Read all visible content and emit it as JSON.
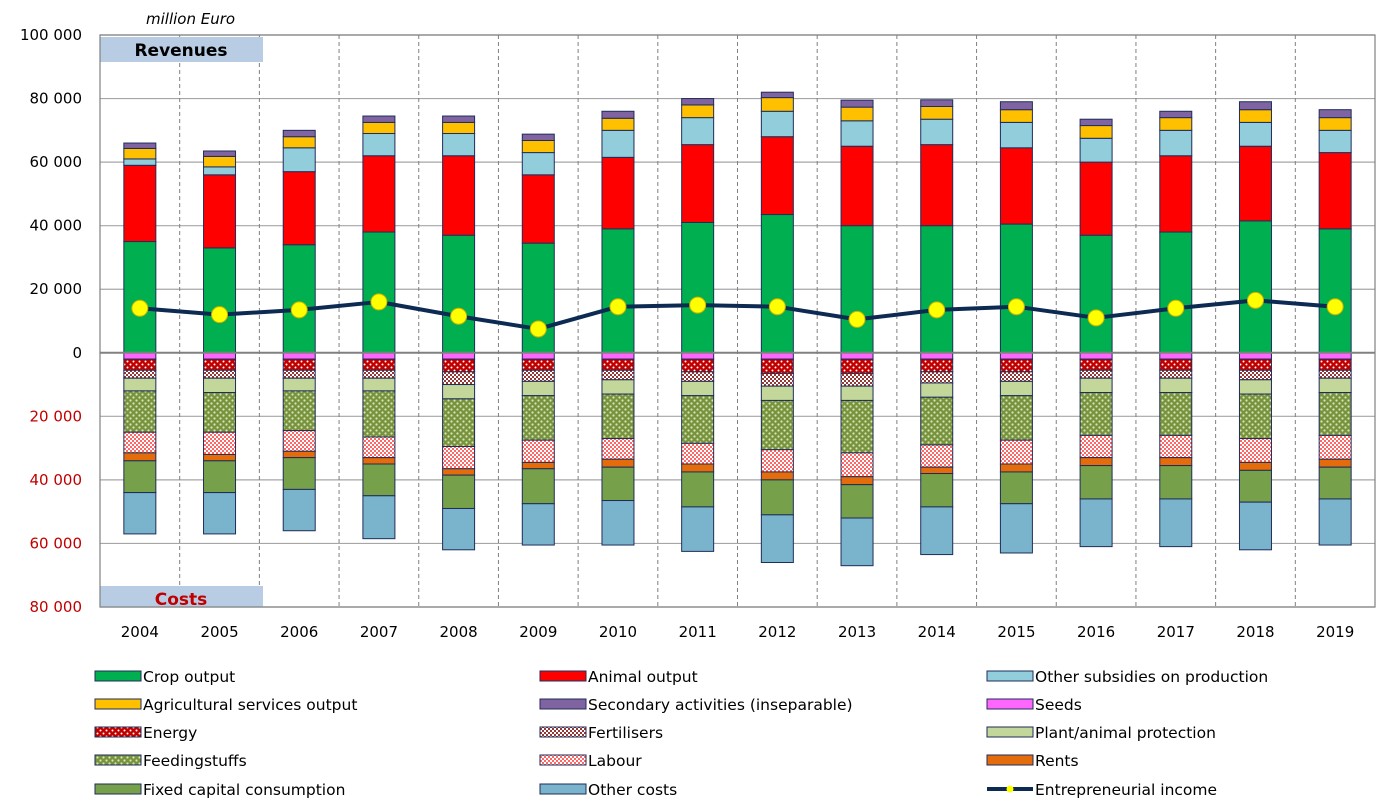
{
  "chart_data": {
    "type": "bar",
    "unit_label": "million Euro",
    "revenues_label": "Revenues",
    "costs_label": "Costs",
    "categories": [
      "2004",
      "2005",
      "2006",
      "2007",
      "2008",
      "2009",
      "2010",
      "2011",
      "2012",
      "2013",
      "2014",
      "2015",
      "2016",
      "2017",
      "2018",
      "2019"
    ],
    "ylim": [
      -80000,
      100000
    ],
    "yticks": [
      {
        "value": 100000,
        "label": "100 000",
        "color": "#000000"
      },
      {
        "value": 80000,
        "label": "80 000",
        "color": "#000000"
      },
      {
        "value": 60000,
        "label": "60 000",
        "color": "#000000"
      },
      {
        "value": 40000,
        "label": "40 000",
        "color": "#000000"
      },
      {
        "value": 20000,
        "label": "20 000",
        "color": "#000000"
      },
      {
        "value": 0,
        "label": "0",
        "color": "#000000"
      },
      {
        "value": -20000,
        "label": "20 000",
        "color": "#c00000"
      },
      {
        "value": -40000,
        "label": "40 000",
        "color": "#c00000"
      },
      {
        "value": -60000,
        "label": "60 000",
        "color": "#c00000"
      },
      {
        "value": -80000,
        "label": "80 000",
        "color": "#c00000"
      }
    ],
    "grid": true,
    "legend_position": "bottom",
    "revenue_series": [
      {
        "name": "Crop output",
        "color": "#00b050",
        "pattern": "solid",
        "values": [
          35000,
          33000,
          34000,
          38000,
          37000,
          34500,
          39000,
          41000,
          43500,
          40000,
          40000,
          40500,
          37000,
          38000,
          41500,
          39000
        ]
      },
      {
        "name": "Animal output",
        "color": "#ff0000",
        "pattern": "solid",
        "values": [
          24000,
          23000,
          23000,
          24000,
          25000,
          21500,
          22500,
          24500,
          24500,
          25000,
          25500,
          24000,
          23000,
          24000,
          23500,
          24000
        ]
      },
      {
        "name": "Other subsidies on production",
        "color": "#92cddc",
        "pattern": "solid",
        "values": [
          2000,
          2500,
          7500,
          7000,
          7000,
          7000,
          8500,
          8500,
          8000,
          8000,
          8000,
          8000,
          7500,
          8000,
          7500,
          7000
        ]
      },
      {
        "name": "Agricultural services output",
        "color": "#ffc000",
        "pattern": "solid",
        "values": [
          3300,
          3300,
          3500,
          3500,
          3500,
          3800,
          3800,
          4000,
          4300,
          4300,
          4000,
          4000,
          4000,
          4000,
          4000,
          4000
        ]
      },
      {
        "name": "Secondary activities (inseparable)",
        "color": "#8064a2",
        "pattern": "solid",
        "values": [
          1700,
          1700,
          2000,
          2000,
          2000,
          2000,
          2200,
          2000,
          1700,
          2200,
          2100,
          2500,
          2000,
          2000,
          2500,
          2500
        ]
      }
    ],
    "cost_series": [
      {
        "name": "Seeds",
        "color": "#ff66ff",
        "pattern": "solid",
        "values": [
          2000,
          2000,
          2000,
          2000,
          2000,
          2000,
          2000,
          2000,
          2000,
          2000,
          2000,
          2000,
          2000,
          2000,
          2000,
          2000
        ]
      },
      {
        "name": "Energy",
        "color": "#c00000",
        "pattern": "dots-red",
        "values": [
          3500,
          3500,
          3500,
          3500,
          4000,
          3500,
          3500,
          4000,
          4500,
          4500,
          4000,
          4000,
          3500,
          3500,
          3500,
          3500
        ]
      },
      {
        "name": "Fertilisers",
        "color": "#953735",
        "pattern": "dots-brown",
        "values": [
          2500,
          2500,
          2500,
          2500,
          4000,
          3500,
          3000,
          3000,
          4000,
          4000,
          3500,
          3000,
          2500,
          2500,
          3000,
          2500
        ]
      },
      {
        "name": "Plant/animal protection",
        "color": "#c4d79b",
        "pattern": "solid",
        "values": [
          4000,
          4500,
          4000,
          4000,
          4500,
          4500,
          4500,
          4500,
          4500,
          4500,
          4500,
          4500,
          4500,
          4500,
          4500,
          4500
        ]
      },
      {
        "name": "Feedingstuffs",
        "color": "#77933c",
        "pattern": "dots-green",
        "values": [
          13000,
          12500,
          12500,
          14500,
          15000,
          14000,
          14000,
          15000,
          15500,
          16500,
          15000,
          14000,
          13500,
          13500,
          14000,
          13500
        ]
      },
      {
        "name": "Labour",
        "color": "#ff9999",
        "pattern": "checks",
        "values": [
          6500,
          7000,
          6500,
          6500,
          7000,
          7000,
          6500,
          6500,
          7000,
          7500,
          7000,
          7500,
          7000,
          7000,
          7500,
          7500
        ]
      },
      {
        "name": "Rents",
        "color": "#e46c0a",
        "pattern": "solid",
        "values": [
          2500,
          2000,
          2000,
          2000,
          2000,
          2000,
          2500,
          2500,
          2500,
          2500,
          2000,
          2500,
          2500,
          2500,
          2500,
          2500
        ]
      },
      {
        "name": "Fixed capital consumption",
        "color": "#77a04a",
        "pattern": "solid",
        "values": [
          10000,
          10000,
          10000,
          10000,
          10500,
          11000,
          10500,
          11000,
          11000,
          10500,
          10500,
          10000,
          10500,
          10500,
          10000,
          10000
        ]
      },
      {
        "name": "Other costs",
        "color": "#7ab4cc",
        "pattern": "solid",
        "values": [
          13000,
          13000,
          13000,
          13500,
          13000,
          13000,
          14000,
          14000,
          15000,
          15000,
          15000,
          15500,
          15000,
          15000,
          15000,
          14500
        ]
      }
    ],
    "line_series": {
      "name": "Entrepreneurial income",
      "line_color": "#0d2a52",
      "marker_color": "#ffff00",
      "values": [
        14000,
        12000,
        13500,
        16000,
        11500,
        7500,
        14500,
        15000,
        14500,
        10500,
        13500,
        14500,
        11000,
        14000,
        16500,
        14500
      ]
    },
    "legend": [
      [
        "Crop output",
        "Animal output",
        "Other subsidies on production"
      ],
      [
        "Agricultural services output",
        "Secondary activities (inseparable)",
        "Seeds"
      ],
      [
        "Energy",
        "Fertilisers",
        "Plant/animal protection"
      ],
      [
        "Feedingstuffs",
        "Labour",
        "Rents"
      ],
      [
        "Fixed capital consumption",
        "Other costs",
        "Entrepreneurial income"
      ]
    ]
  }
}
